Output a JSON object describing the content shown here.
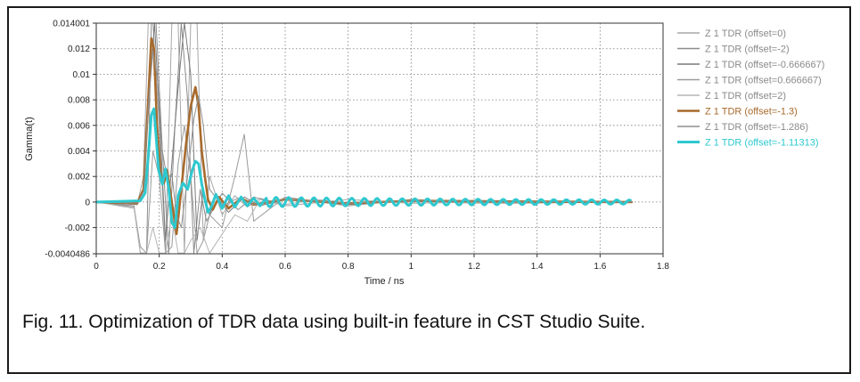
{
  "caption": "Fig. 11. Optimization of TDR data using built-in feature in CST Studio Suite.",
  "chart_data": {
    "type": "line",
    "title": "",
    "xlabel": "Time / ns",
    "ylabel": "Gamma(t)",
    "xlim": [
      0,
      1.8
    ],
    "ylim": [
      -0.0040486,
      0.014001
    ],
    "x_ticks": [
      "0",
      "0.2",
      "0.4",
      "0.6",
      "0.8",
      "1",
      "1.2",
      "1.4",
      "1.6",
      "1.8"
    ],
    "y_ticks": [
      "0.014001",
      "0.012",
      "0.01",
      "0.008",
      "0.006",
      "0.004",
      "0.002",
      "0",
      "-0.002",
      "-0.0040486"
    ],
    "grid": true,
    "legend_position": "right",
    "series": [
      {
        "name": "Z 1 TDR (offset=0)",
        "color": "#a8a8a8",
        "width": 1,
        "x": [
          0,
          0.13,
          0.15,
          0.165,
          0.18,
          0.2,
          0.22,
          0.24,
          0.26,
          0.28,
          0.3,
          0.32,
          0.34,
          0.36,
          0.38,
          0.4,
          0.44,
          0.48,
          0.52,
          0.6,
          0.7,
          0.8,
          1.0,
          1.2,
          1.4,
          1.6,
          1.7
        ],
        "y": [
          0,
          -0.0002,
          0.002,
          0.014,
          0.014,
          0.006,
          -0.004,
          0.014,
          0.014,
          -0.004,
          0.014,
          0.014,
          -0.003,
          0.002,
          0.0005,
          -0.001,
          0.0005,
          -0.0004,
          0.0003,
          -0.0002,
          0.0002,
          -0.0001,
          0.0001,
          -0.0001,
          5e-05,
          0,
          0
        ]
      },
      {
        "name": "Z 1 TDR (offset=-2)",
        "color": "#8c8c8c",
        "width": 1,
        "x": [
          0,
          0.12,
          0.14,
          0.16,
          0.175,
          0.19,
          0.21,
          0.23,
          0.25,
          0.27,
          0.29,
          0.31,
          0.33,
          0.35,
          0.4,
          0.45,
          0.5,
          0.6,
          0.8,
          1.0,
          1.3,
          1.7
        ],
        "y": [
          0,
          -0.0003,
          -0.004,
          -0.004,
          0.014,
          0.014,
          0.004,
          -0.004,
          0.006,
          0.014,
          0.008,
          -0.004,
          0.001,
          -0.0015,
          0.0007,
          -0.0006,
          0.0004,
          -0.0003,
          0.0002,
          -0.0001,
          5e-05,
          0
        ]
      },
      {
        "name": "Z 1 TDR (offset=-0.666667)",
        "color": "#7a7a7a",
        "width": 1,
        "x": [
          0,
          0.13,
          0.15,
          0.17,
          0.185,
          0.2,
          0.22,
          0.24,
          0.26,
          0.28,
          0.3,
          0.32,
          0.34,
          0.36,
          0.38,
          0.42,
          0.47,
          0.52,
          0.6,
          0.8,
          1.0,
          1.3,
          1.7
        ],
        "y": [
          0,
          -0.0002,
          0.001,
          0.009,
          0.014,
          0.007,
          -0.003,
          0.003,
          0.009,
          0.014,
          0.01,
          -0.003,
          0.001,
          -0.001,
          0.0005,
          -0.0008,
          0.0004,
          -0.0003,
          0.0002,
          -0.0002,
          0.0001,
          5e-05,
          0
        ]
      },
      {
        "name": "Z 1 TDR (offset=0.666667)",
        "color": "#9a9a9a",
        "width": 1,
        "x": [
          0,
          0.12,
          0.14,
          0.16,
          0.18,
          0.2,
          0.22,
          0.24,
          0.26,
          0.28,
          0.3,
          0.32,
          0.34,
          0.36,
          0.4,
          0.44,
          0.47,
          0.5,
          0.6,
          0.8,
          1.0,
          1.3,
          1.7
        ],
        "y": [
          0,
          -0.0004,
          -0.0035,
          -0.004,
          0.004,
          0.002,
          -0.004,
          -0.0035,
          0.003,
          0.006,
          0.002,
          -0.004,
          -0.003,
          -0.001,
          -0.002,
          0.002,
          0.0053,
          -0.0015,
          0.0004,
          -0.0003,
          0.0002,
          -0.0001,
          0
        ]
      },
      {
        "name": "Z 1 TDR (offset=2)",
        "color": "#b5b5b5",
        "width": 1,
        "x": [
          0,
          0.12,
          0.14,
          0.16,
          0.18,
          0.2,
          0.22,
          0.24,
          0.26,
          0.28,
          0.3,
          0.33,
          0.36,
          0.4,
          0.44,
          0.48,
          0.52,
          0.6,
          0.8,
          1.0,
          1.3,
          1.7
        ],
        "y": [
          0,
          -0.0005,
          -0.004,
          -0.004,
          -0.002,
          -0.004,
          -0.004,
          -0.001,
          -0.004,
          -0.004,
          -0.003,
          -0.002,
          -0.004,
          -0.0025,
          -0.001,
          -0.0015,
          0.0002,
          -0.0003,
          0.0002,
          -0.0001,
          5e-05,
          0
        ]
      },
      {
        "name": "Z 1 TDR (offset=-1.3)",
        "color": "#a86a2c",
        "width": 2.6,
        "x": [
          0,
          0.13,
          0.15,
          0.165,
          0.175,
          0.183,
          0.193,
          0.205,
          0.215,
          0.225,
          0.24,
          0.255,
          0.27,
          0.285,
          0.3,
          0.315,
          0.325,
          0.335,
          0.345,
          0.355,
          0.37,
          0.39,
          0.42,
          0.46,
          0.5,
          0.6,
          0.8,
          1.0,
          1.3,
          1.7
        ],
        "y": [
          0,
          -0.0001,
          0.001,
          0.008,
          0.0128,
          0.012,
          0.006,
          0.002,
          0.0015,
          0.0025,
          0,
          -0.0025,
          0.001,
          0.0045,
          0.0075,
          0.009,
          0.0075,
          0.004,
          0.002,
          0.0002,
          -0.0006,
          0.0004,
          -0.0005,
          0.0003,
          -0.0002,
          0.0002,
          -0.0001,
          0.0001,
          5e-05,
          0
        ]
      },
      {
        "name": "Z 1 TDR (offset=-1.286)",
        "color": "#8e8e8e",
        "width": 1,
        "x": [
          0,
          0.13,
          0.15,
          0.165,
          0.18,
          0.195,
          0.21,
          0.225,
          0.24,
          0.255,
          0.27,
          0.29,
          0.31,
          0.325,
          0.34,
          0.36,
          0.4,
          0.45,
          0.5,
          0.6,
          0.8,
          1.0,
          1.3,
          1.7
        ],
        "y": [
          0,
          -0.0001,
          0.0008,
          0.0075,
          0.0118,
          0.0095,
          0.004,
          0.0018,
          0.0022,
          -0.001,
          -0.002,
          0.002,
          0.0065,
          0.0083,
          0.006,
          0.001,
          -0.0003,
          0.0003,
          -0.0002,
          0.0002,
          -0.0001,
          0.0001,
          5e-05,
          0
        ]
      },
      {
        "name": "Z 1 TDR (offset=-1.11313)",
        "color": "#2ec8cf",
        "width": 3,
        "x": [
          0,
          0.14,
          0.155,
          0.165,
          0.175,
          0.183,
          0.19,
          0.198,
          0.21,
          0.22,
          0.23,
          0.24,
          0.25,
          0.26,
          0.275,
          0.29,
          0.305,
          0.315,
          0.325,
          0.335,
          0.345,
          0.355,
          0.365,
          0.38,
          0.4,
          0.42,
          0.44,
          0.46,
          0.48,
          0.5,
          0.52,
          0.54
        ],
        "y": [
          0,
          0.0001,
          0.0007,
          0.0035,
          0.0068,
          0.0073,
          0.0052,
          0.0025,
          0.0014,
          0.0026,
          0.0011,
          -0.0016,
          -0.002,
          0.0005,
          0.0015,
          0.001,
          0.0025,
          0.0032,
          0.003,
          0.0014,
          0.0002,
          -0.0008,
          -0.0004,
          0.0006,
          -0.0005,
          0.0005,
          -0.0004,
          0.0004,
          -0.0003,
          0.0003,
          -0.0003,
          0.0003
        ]
      }
    ]
  }
}
